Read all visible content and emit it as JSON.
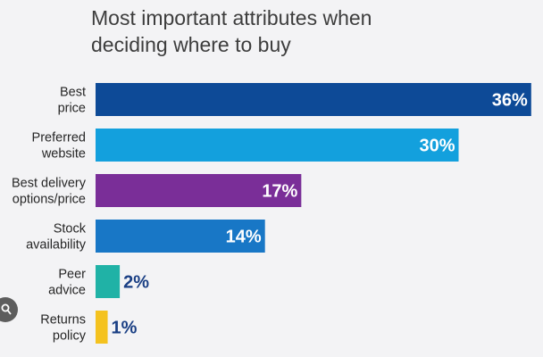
{
  "chart_data": {
    "type": "bar",
    "orientation": "horizontal",
    "title": "Most important attributes when deciding where to buy",
    "title_lines": [
      "Most important attributes when",
      "deciding where to buy"
    ],
    "xlabel": "",
    "ylabel": "",
    "xlim": [
      0,
      36
    ],
    "grid": false,
    "legend": "none",
    "categories": [
      {
        "lines": [
          "Best",
          "price"
        ]
      },
      {
        "lines": [
          "Preferred",
          "website"
        ]
      },
      {
        "lines": [
          "Best delivery",
          "options/price"
        ]
      },
      {
        "lines": [
          "Stock",
          "availability"
        ]
      },
      {
        "lines": [
          "Peer",
          "advice"
        ]
      },
      {
        "lines": [
          "Returns",
          "policy"
        ]
      }
    ],
    "values": [
      36,
      30,
      17,
      14,
      2,
      1
    ],
    "value_labels": [
      "36%",
      "30%",
      "17%",
      "14%",
      "2%",
      "1%"
    ],
    "colors": [
      "#0d4a97",
      "#13a0dd",
      "#7a2e98",
      "#1877c6",
      "#20b2a6",
      "#f4c21f"
    ],
    "label_color_outside": "#1a3f84"
  },
  "overlay": {
    "icon": "lens-icon"
  }
}
